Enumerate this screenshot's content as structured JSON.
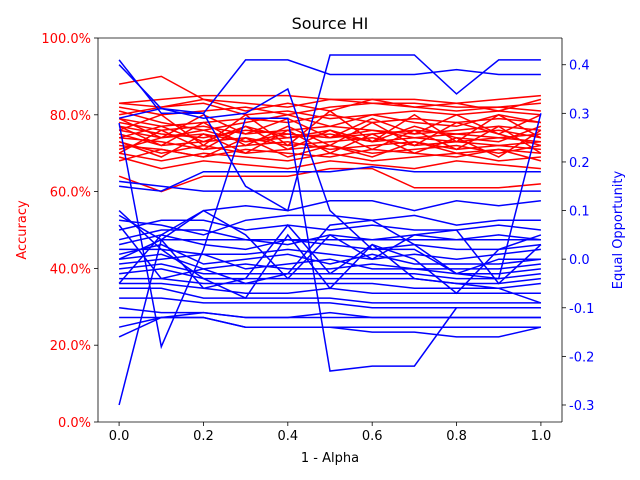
{
  "chart_data": {
    "type": "line",
    "title": "Source HI",
    "xlabel": "1 - Alpha",
    "ylabel_left": "Accuracy",
    "ylabel_right": "Equal Opportunity",
    "x": [
      0.0,
      0.1,
      0.2,
      0.3,
      0.4,
      0.5,
      0.6,
      0.7,
      0.8,
      0.9,
      1.0
    ],
    "xlim": [
      -0.05,
      1.05
    ],
    "xticks": [
      "0.0",
      "0.2",
      "0.4",
      "0.6",
      "0.8",
      "1.0"
    ],
    "y_left": {
      "ylim": [
        0,
        100
      ],
      "ticks": [
        "0.0%",
        "20.0%",
        "40.0%",
        "60.0%",
        "80.0%",
        "100.0%"
      ],
      "color": "#ff0000"
    },
    "y_right": {
      "ylim": [
        -0.335,
        0.455
      ],
      "ticks": [
        "-0.3",
        "-0.2",
        "-0.1",
        "0.0",
        "0.1",
        "0.2",
        "0.3",
        "0.4"
      ],
      "color": "#0000ff"
    },
    "grid": false,
    "legend": "none",
    "series": [
      {
        "axis": "left",
        "color": "#ff0000",
        "values": [
          88,
          90,
          84,
          83,
          82,
          84,
          83,
          83,
          82,
          82,
          83
        ]
      },
      {
        "axis": "left",
        "color": "#ff0000",
        "values": [
          83,
          84,
          85,
          85,
          85,
          84,
          84,
          84,
          83,
          84,
          85
        ]
      },
      {
        "axis": "left",
        "color": "#ff0000",
        "values": [
          82,
          80,
          81,
          82,
          80,
          82,
          83,
          82,
          81,
          82,
          81
        ]
      },
      {
        "axis": "left",
        "color": "#ff0000",
        "values": [
          80,
          82,
          83,
          80,
          81,
          79,
          80,
          81,
          80,
          81,
          80
        ]
      },
      {
        "axis": "left",
        "color": "#ff0000",
        "values": [
          79,
          77,
          78,
          79,
          78,
          80,
          78,
          79,
          78,
          79,
          78
        ]
      },
      {
        "axis": "left",
        "color": "#ff0000",
        "values": [
          78,
          76,
          77,
          75,
          76,
          77,
          76,
          75,
          76,
          77,
          76
        ]
      },
      {
        "axis": "left",
        "color": "#ff0000",
        "values": [
          77,
          75,
          74,
          76,
          75,
          74,
          75,
          76,
          75,
          74,
          75
        ]
      },
      {
        "axis": "left",
        "color": "#ff0000",
        "values": [
          76,
          74,
          75,
          73,
          74,
          75,
          73,
          74,
          73,
          74,
          73
        ]
      },
      {
        "axis": "left",
        "color": "#ff0000",
        "values": [
          75,
          72,
          73,
          74,
          72,
          73,
          74,
          72,
          73,
          72,
          73
        ]
      },
      {
        "axis": "left",
        "color": "#ff0000",
        "values": [
          74,
          73,
          71,
          72,
          73,
          71,
          72,
          73,
          71,
          72,
          71
        ]
      },
      {
        "axis": "left",
        "color": "#ff0000",
        "values": [
          73,
          70,
          72,
          70,
          71,
          72,
          70,
          71,
          72,
          70,
          72
        ]
      },
      {
        "axis": "left",
        "color": "#ff0000",
        "values": [
          72,
          71,
          69,
          71,
          70,
          69,
          71,
          70,
          69,
          71,
          70
        ]
      },
      {
        "axis": "left",
        "color": "#ff0000",
        "values": [
          70,
          68,
          70,
          69,
          68,
          70,
          68,
          69,
          70,
          68,
          69
        ]
      },
      {
        "axis": "left",
        "color": "#ff0000",
        "values": [
          69,
          66,
          68,
          67,
          66,
          68,
          67,
          66,
          68,
          67,
          66
        ]
      },
      {
        "axis": "left",
        "color": "#ff0000",
        "values": [
          64,
          60,
          64,
          64,
          64,
          66,
          66,
          61,
          61,
          61,
          62
        ]
      },
      {
        "axis": "left",
        "color": "#ff0000",
        "values": [
          71,
          74,
          76,
          73,
          75,
          74,
          76,
          74,
          75,
          76,
          74
        ]
      },
      {
        "axis": "left",
        "color": "#ff0000",
        "values": [
          74,
          77,
          73,
          77,
          74,
          76,
          73,
          77,
          74,
          73,
          77
        ]
      },
      {
        "axis": "left",
        "color": "#ff0000",
        "values": [
          77,
          72,
          78,
          72,
          77,
          72,
          78,
          72,
          78,
          75,
          72
        ]
      },
      {
        "axis": "left",
        "color": "#ff0000",
        "values": [
          81,
          78,
          76,
          78,
          80,
          77,
          80,
          78,
          77,
          80,
          78
        ]
      },
      {
        "axis": "left",
        "color": "#ff0000",
        "values": [
          68,
          71,
          69,
          74,
          69,
          72,
          69,
          73,
          70,
          71,
          68
        ]
      },
      {
        "axis": "left",
        "color": "#ff0000",
        "values": [
          73,
          69,
          75,
          70,
          76,
          70,
          75,
          70,
          74,
          69,
          76
        ]
      },
      {
        "axis": "left",
        "color": "#ff0000",
        "values": [
          76,
          80,
          72,
          80,
          72,
          81,
          73,
          80,
          73,
          80,
          74
        ]
      },
      {
        "axis": "left",
        "color": "#ff0000",
        "values": [
          79,
          74,
          80,
          75,
          79,
          74,
          79,
          75,
          80,
          75,
          80
        ]
      },
      {
        "axis": "left",
        "color": "#ff0000",
        "values": [
          70,
          76,
          71,
          77,
          71,
          76,
          71,
          76,
          71,
          77,
          70
        ]
      },
      {
        "axis": "left",
        "color": "#ff0000",
        "values": [
          83,
          82,
          84,
          81,
          83,
          81,
          84,
          82,
          83,
          81,
          84
        ]
      },
      {
        "axis": "right",
        "color": "#0000ff",
        "values": [
          0.41,
          0.3,
          0.3,
          0.15,
          0.1,
          0.42,
          0.42,
          0.42,
          0.34,
          0.41,
          0.41
        ]
      },
      {
        "axis": "right",
        "color": "#0000ff",
        "values": [
          0.4,
          0.31,
          0.3,
          0.41,
          0.41,
          0.38,
          0.38,
          0.38,
          0.39,
          0.38,
          0.38
        ]
      },
      {
        "axis": "right",
        "color": "#0000ff",
        "values": [
          0.29,
          0.31,
          0.29,
          0.3,
          0.35,
          0.1,
          0.02,
          0.02,
          -0.03,
          -0.04,
          0.3
        ]
      },
      {
        "axis": "right",
        "color": "#0000ff",
        "values": [
          0.28,
          -0.18,
          0.02,
          0.29,
          0.29,
          -0.23,
          -0.22,
          -0.22,
          -0.1,
          -0.1,
          -0.1
        ]
      },
      {
        "axis": "right",
        "color": "#0000ff",
        "values": [
          0.16,
          0.15,
          0.14,
          0.14,
          0.14,
          0.14,
          0.14,
          0.14,
          0.14,
          0.14,
          0.14
        ]
      },
      {
        "axis": "right",
        "color": "#0000ff",
        "values": [
          0.15,
          0.14,
          0.18,
          0.18,
          0.18,
          0.18,
          0.19,
          0.18,
          0.18,
          0.18,
          0.18
        ]
      },
      {
        "axis": "right",
        "color": "#0000ff",
        "values": [
          0.09,
          0.04,
          0.1,
          0.11,
          0.1,
          0.12,
          0.12,
          0.1,
          0.12,
          0.11,
          0.12
        ]
      },
      {
        "axis": "right",
        "color": "#0000ff",
        "values": [
          0.08,
          0.07,
          0.05,
          0.08,
          0.09,
          0.09,
          0.08,
          0.09,
          0.07,
          0.08,
          0.08
        ]
      },
      {
        "axis": "right",
        "color": "#0000ff",
        "values": [
          0.06,
          0.08,
          0.08,
          0.06,
          0.07,
          0.06,
          0.07,
          0.06,
          0.06,
          0.07,
          0.06
        ]
      },
      {
        "axis": "right",
        "color": "#0000ff",
        "values": [
          0.04,
          0.06,
          0.06,
          0.04,
          0.03,
          0.05,
          0.04,
          0.05,
          0.04,
          0.05,
          0.04
        ]
      },
      {
        "axis": "right",
        "color": "#0000ff",
        "values": [
          0.03,
          0.05,
          0.03,
          0.02,
          0.04,
          0.03,
          0.02,
          0.03,
          0.02,
          0.02,
          0.03
        ]
      },
      {
        "axis": "right",
        "color": "#0000ff",
        "values": [
          0.02,
          0.02,
          0.01,
          0.01,
          0.02,
          0.01,
          0.0,
          0.01,
          0.0,
          0.01,
          0.02
        ]
      },
      {
        "axis": "right",
        "color": "#0000ff",
        "values": [
          0.01,
          0.03,
          -0.01,
          0.0,
          0.01,
          -0.01,
          0.01,
          -0.01,
          -0.01,
          -0.01,
          0.0
        ]
      },
      {
        "axis": "right",
        "color": "#0000ff",
        "values": [
          0.0,
          0.01,
          -0.02,
          -0.01,
          -0.02,
          -0.02,
          -0.01,
          -0.02,
          -0.02,
          -0.02,
          -0.01
        ]
      },
      {
        "axis": "right",
        "color": "#0000ff",
        "values": [
          -0.01,
          0.0,
          0.01,
          -0.02,
          -0.01,
          0.0,
          -0.02,
          -0.02,
          -0.03,
          -0.03,
          -0.02
        ]
      },
      {
        "axis": "right",
        "color": "#0000ff",
        "values": [
          -0.02,
          -0.01,
          -0.03,
          -0.03,
          -0.03,
          -0.03,
          -0.03,
          -0.03,
          -0.04,
          -0.04,
          -0.03
        ]
      },
      {
        "axis": "right",
        "color": "#0000ff",
        "values": [
          -0.03,
          -0.02,
          -0.04,
          -0.04,
          -0.04,
          -0.04,
          -0.04,
          -0.04,
          -0.05,
          -0.05,
          -0.04
        ]
      },
      {
        "axis": "right",
        "color": "#0000ff",
        "values": [
          -0.04,
          -0.04,
          -0.05,
          -0.05,
          -0.05,
          -0.05,
          -0.05,
          -0.06,
          -0.06,
          -0.06,
          -0.05
        ]
      },
      {
        "axis": "right",
        "color": "#0000ff",
        "values": [
          -0.05,
          -0.05,
          -0.06,
          -0.07,
          -0.07,
          -0.06,
          -0.07,
          -0.07,
          -0.07,
          -0.07,
          -0.07
        ]
      },
      {
        "axis": "right",
        "color": "#0000ff",
        "values": [
          -0.06,
          -0.06,
          -0.08,
          -0.08,
          -0.08,
          -0.08,
          -0.09,
          -0.09,
          -0.09,
          -0.09,
          -0.09
        ]
      },
      {
        "axis": "right",
        "color": "#0000ff",
        "values": [
          -0.08,
          -0.08,
          -0.09,
          -0.09,
          -0.09,
          -0.09,
          -0.1,
          -0.1,
          -0.1,
          -0.1,
          -0.1
        ]
      },
      {
        "axis": "right",
        "color": "#0000ff",
        "values": [
          -0.1,
          -0.11,
          -0.11,
          -0.12,
          -0.12,
          -0.12,
          -0.12,
          -0.12,
          -0.12,
          -0.12,
          -0.12
        ]
      },
      {
        "axis": "right",
        "color": "#0000ff",
        "values": [
          -0.12,
          -0.12,
          -0.11,
          -0.12,
          -0.12,
          -0.11,
          -0.12,
          -0.12,
          -0.12,
          -0.12,
          -0.12
        ]
      },
      {
        "axis": "right",
        "color": "#0000ff",
        "values": [
          -0.14,
          -0.12,
          -0.12,
          -0.14,
          -0.14,
          -0.14,
          -0.14,
          -0.14,
          -0.14,
          -0.14,
          -0.14
        ]
      },
      {
        "axis": "right",
        "color": "#0000ff",
        "values": [
          -0.16,
          -0.12,
          -0.12,
          -0.14,
          -0.14,
          -0.14,
          -0.15,
          -0.15,
          -0.16,
          -0.16,
          -0.14
        ]
      },
      {
        "axis": "right",
        "color": "#0000ff",
        "values": [
          -0.3,
          0.04,
          0.04,
          0.04,
          0.04,
          0.04,
          0.04,
          0.04,
          0.04,
          0.04,
          0.04
        ]
      },
      {
        "axis": "right",
        "color": "#0000ff",
        "values": [
          0.1,
          0.02,
          -0.04,
          -0.08,
          0.05,
          -0.06,
          0.03,
          -0.04,
          -0.05,
          -0.06,
          -0.09
        ]
      },
      {
        "axis": "right",
        "color": "#0000ff",
        "values": [
          0.07,
          -0.04,
          -0.02,
          -0.05,
          -0.03,
          0.07,
          0.08,
          0.03,
          -0.03,
          0.0,
          0.0
        ]
      },
      {
        "axis": "right",
        "color": "#0000ff",
        "values": [
          -0.05,
          0.05,
          0.1,
          0.05,
          -0.04,
          0.05,
          0.0,
          0.05,
          0.06,
          -0.05,
          0.03
        ]
      },
      {
        "axis": "right",
        "color": "#0000ff",
        "values": [
          0.0,
          0.04,
          -0.06,
          -0.04,
          0.07,
          -0.03,
          0.03,
          0.0,
          -0.07,
          0.02,
          0.05
        ]
      }
    ]
  }
}
